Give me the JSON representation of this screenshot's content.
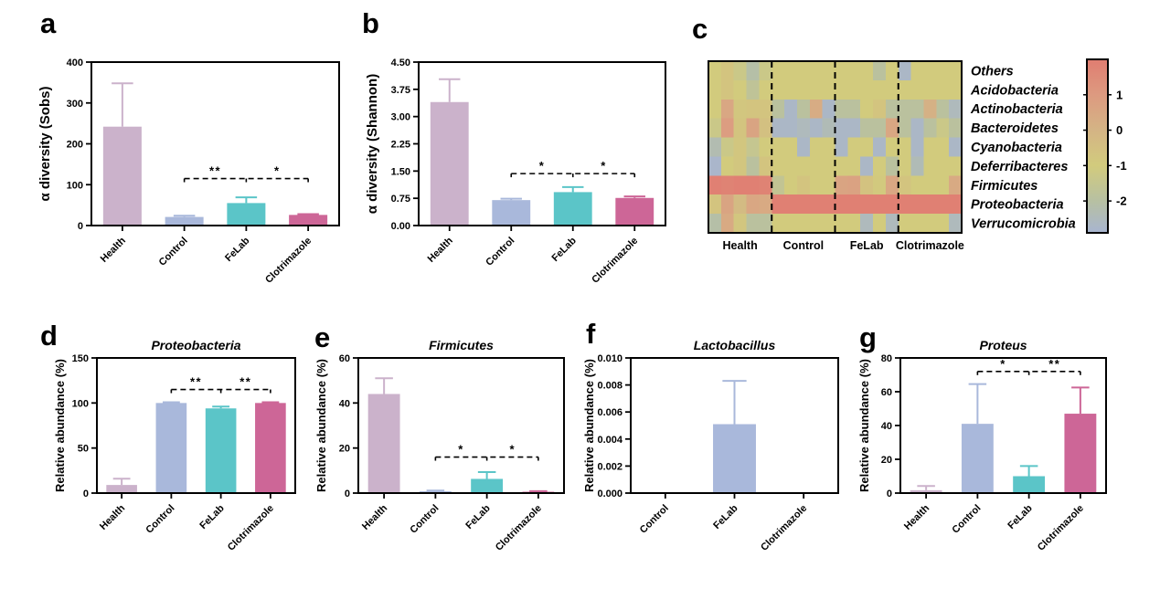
{
  "figure": {
    "background": "#ffffff",
    "groups": [
      "Health",
      "Control",
      "FeLab",
      "Clotrimazole"
    ],
    "group_colors": {
      "Health": "#cbb2cb",
      "Control": "#a9b8db",
      "FeLab": "#5bc5c8",
      "Clotrimazole": "#cd6697"
    }
  },
  "chart_data": [
    {
      "id": "a",
      "type": "bar",
      "letter": "a",
      "title": "",
      "ylabel": "α diversity (Sobs)",
      "ylim": [
        0,
        400
      ],
      "yticks": [
        0,
        100,
        200,
        300,
        400
      ],
      "ydec": 0,
      "categories": [
        "Health",
        "Control",
        "FeLab",
        "Clotrimazole"
      ],
      "values": [
        242,
        21,
        55,
        26
      ],
      "errors": [
        106,
        3,
        14,
        2
      ],
      "bar_colors": [
        "#cbb2cb",
        "#a9b8db",
        "#5bc5c8",
        "#cd6697"
      ],
      "significance": {
        "y": 115,
        "span": [
          1,
          3
        ],
        "ticks": [
          1,
          2,
          3
        ],
        "labels": [
          {
            "text": "**",
            "between": [
              1,
              2
            ]
          },
          {
            "text": "*",
            "between": [
              2,
              3
            ]
          }
        ]
      }
    },
    {
      "id": "b",
      "type": "bar",
      "letter": "b",
      "title": "",
      "ylabel": "α diversity (Shannon)",
      "ylim": [
        0,
        4.5
      ],
      "yticks": [
        0,
        0.75,
        1.5,
        2.25,
        3,
        3.75,
        4.5
      ],
      "ydec": 2,
      "categories": [
        "Health",
        "Control",
        "FeLab",
        "Clotrimazole"
      ],
      "values": [
        3.4,
        0.7,
        0.92,
        0.76
      ],
      "errors": [
        0.63,
        0.04,
        0.14,
        0.04
      ],
      "bar_colors": [
        "#cbb2cb",
        "#a9b8db",
        "#5bc5c8",
        "#cd6697"
      ],
      "significance": {
        "y": 1.43,
        "span": [
          1,
          3
        ],
        "ticks": [
          1,
          2,
          3
        ],
        "labels": [
          {
            "text": "*",
            "between": [
              1,
              2
            ]
          },
          {
            "text": "*",
            "between": [
              2,
              3
            ]
          }
        ]
      }
    },
    {
      "id": "c",
      "type": "heatmap",
      "letter": "c",
      "rows": [
        "Others",
        "Acidobacteria",
        "Actinobacteria",
        "Bacteroidetes",
        "Cyanobacteria",
        "Deferribacteres",
        "Firmicutes",
        "Proteobacteria",
        "Verrucomicrobia"
      ],
      "groups": [
        "Health",
        "Control",
        "FeLab",
        "Clotrimazole"
      ],
      "cols_per_group": 5,
      "values": [
        [
          -1.0,
          -0.7,
          -1.3,
          -2.1,
          -1.3,
          -1.0,
          -1.0,
          -1.0,
          -1.0,
          -1.0,
          -1.0,
          -1.0,
          -1.0,
          -1.9,
          -1.0,
          -2.7,
          -1.0,
          -1.0,
          -1.0,
          -1.0
        ],
        [
          -1.0,
          -0.7,
          -1.0,
          -1.7,
          -1.0,
          -1.0,
          -1.0,
          -1.0,
          -1.0,
          -1.0,
          -1.0,
          -1.0,
          -1.0,
          -1.0,
          -1.0,
          -1.0,
          -1.0,
          -1.0,
          -1.0,
          -1.0
        ],
        [
          -1.0,
          0.5,
          -0.8,
          -0.7,
          -0.7,
          -1.9,
          -2.7,
          -1.9,
          0.3,
          -2.7,
          -1.9,
          -1.9,
          -1.0,
          -0.7,
          -1.9,
          -1.9,
          -1.9,
          0.1,
          -1.9,
          -2.5
        ],
        [
          -1.3,
          0.9,
          -0.7,
          0.6,
          -0.5,
          -2.7,
          -2.7,
          -2.5,
          -2.7,
          -2.4,
          -2.7,
          -2.7,
          -1.9,
          -1.9,
          0.5,
          -1.9,
          -2.7,
          -1.9,
          -1.3,
          -1.9
        ],
        [
          -2.3,
          -1.3,
          -0.8,
          -1.5,
          -1.0,
          -1.0,
          -1.0,
          -2.7,
          -1.0,
          -1.0,
          -2.7,
          -1.0,
          -1.0,
          -2.7,
          -1.0,
          -1.0,
          -2.7,
          -1.0,
          -1.0,
          -2.7
        ],
        [
          -2.8,
          -1.0,
          -0.8,
          -1.9,
          -0.7,
          -1.0,
          -1.0,
          -1.0,
          -1.0,
          -1.0,
          -1.0,
          -1.0,
          -2.7,
          -1.0,
          -1.9,
          -1.0,
          -2.4,
          -1.0,
          -1.0,
          -1.0
        ],
        [
          1.9,
          1.8,
          1.9,
          1.9,
          1.8,
          -1.6,
          -1.0,
          -0.7,
          -1.0,
          -1.0,
          0.6,
          0.7,
          -0.6,
          -0.9,
          0.5,
          -0.7,
          -1.0,
          -1.0,
          -1.0,
          0.4
        ],
        [
          -0.7,
          0.6,
          -0.3,
          0.5,
          0.4,
          1.9,
          1.9,
          1.9,
          1.9,
          1.9,
          1.9,
          1.9,
          1.9,
          1.9,
          1.9,
          1.9,
          1.9,
          1.9,
          1.9,
          1.9
        ],
        [
          -2.1,
          0.4,
          -0.8,
          -1.9,
          -1.9,
          -1.0,
          -1.0,
          -1.0,
          -1.0,
          -1.0,
          -1.0,
          -1.0,
          -2.5,
          -1.0,
          -2.5,
          -1.0,
          -1.0,
          -1.0,
          -1.0,
          -2.5
        ]
      ],
      "scale": {
        "min": -2.9,
        "max": 2.0,
        "ticks": [
          1,
          0,
          -1,
          -2
        ],
        "stops": [
          {
            "v": -2.9,
            "c": "#a8b5d0"
          },
          {
            "v": -2.0,
            "c": "#b7c0a2"
          },
          {
            "v": -1.0,
            "c": "#d2cb7d"
          },
          {
            "v": 0.0,
            "c": "#d4b485"
          },
          {
            "v": 1.0,
            "c": "#dd9a80"
          },
          {
            "v": 2.0,
            "c": "#e07d71"
          }
        ]
      }
    },
    {
      "id": "d",
      "type": "bar",
      "letter": "d",
      "title": "Proteobacteria",
      "ylabel": "Relative abundance (%)",
      "ylim": [
        0,
        150
      ],
      "yticks": [
        0,
        50,
        100,
        150
      ],
      "ydec": 0,
      "categories": [
        "Health",
        "Control",
        "FeLab",
        "Clotrimazole"
      ],
      "values": [
        9,
        100,
        94,
        100
      ],
      "errors": [
        7,
        0.8,
        2,
        0.8
      ],
      "bar_colors": [
        "#cbb2cb",
        "#a9b8db",
        "#5bc5c8",
        "#cd6697"
      ],
      "significance": {
        "y": 115,
        "span": [
          1,
          3
        ],
        "ticks": [
          1,
          2,
          3
        ],
        "labels": [
          {
            "text": "**",
            "between": [
              1,
              2
            ]
          },
          {
            "text": "**",
            "between": [
              2,
              3
            ]
          }
        ]
      }
    },
    {
      "id": "e",
      "type": "bar",
      "letter": "e",
      "title": "Firmicutes",
      "ylabel": "Relative abundance (%)",
      "ylim": [
        0,
        60
      ],
      "yticks": [
        0,
        20,
        40,
        60
      ],
      "ydec": 0,
      "categories": [
        "Health",
        "Control",
        "FeLab",
        "Clotrimazole"
      ],
      "values": [
        44,
        0.8,
        6.3,
        0.6
      ],
      "errors": [
        7,
        0.3,
        3,
        0.25
      ],
      "bar_colors": [
        "#cbb2cb",
        "#a9b8db",
        "#5bc5c8",
        "#cd6697"
      ],
      "significance": {
        "y": 16,
        "span": [
          1,
          3
        ],
        "ticks": [
          1,
          2,
          3
        ],
        "labels": [
          {
            "text": "*",
            "between": [
              1,
              2
            ]
          },
          {
            "text": "*",
            "between": [
              2,
              3
            ]
          }
        ]
      }
    },
    {
      "id": "f",
      "type": "bar",
      "letter": "f",
      "title": "Lactobacillus",
      "ylabel": "Relative abundance (%)",
      "ylim": [
        0,
        0.01
      ],
      "yticks": [
        0,
        0.002,
        0.004,
        0.006,
        0.008,
        0.01
      ],
      "ydec": 3,
      "categories": [
        "Control",
        "FeLab",
        "Clotrimazole"
      ],
      "values": [
        0,
        0.0051,
        0
      ],
      "errors": [
        0,
        0.0032,
        0
      ],
      "bar_colors": [
        "#a9b8db",
        "#a9b8db",
        "#a9b8db"
      ],
      "significance": null
    },
    {
      "id": "g",
      "type": "bar",
      "letter": "g",
      "title": "Proteus",
      "ylabel": "Relative abundance (%)",
      "ylim": [
        0,
        80
      ],
      "yticks": [
        0,
        20,
        40,
        60,
        80
      ],
      "ydec": 0,
      "categories": [
        "Health",
        "Control",
        "FeLab",
        "Clotrimazole"
      ],
      "values": [
        1.7,
        41,
        10,
        47
      ],
      "errors": [
        2.5,
        23.5,
        6,
        15.5
      ],
      "bar_colors": [
        "#cbb2cb",
        "#a9b8db",
        "#5bc5c8",
        "#cd6697"
      ],
      "significance": {
        "y": 72,
        "span": [
          1,
          3
        ],
        "ticks": [
          1,
          2,
          3
        ],
        "labels": [
          {
            "text": "*",
            "between": [
              1,
              2
            ]
          },
          {
            "text": "**",
            "between": [
              2,
              3
            ]
          }
        ]
      }
    }
  ]
}
